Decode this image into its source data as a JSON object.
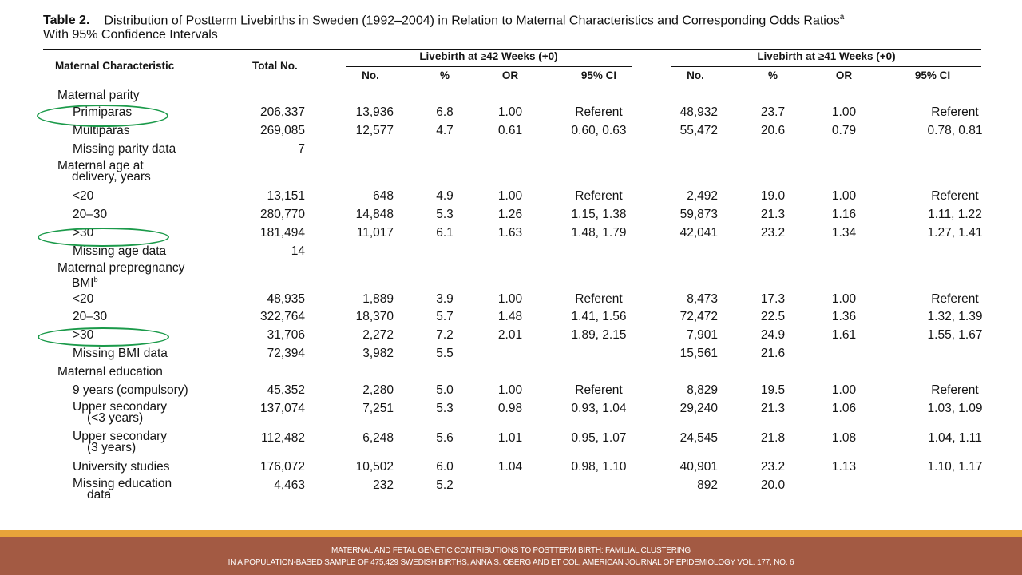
{
  "title": {
    "label": "Table 2.",
    "text": "Distribution of Postterm Livebirths in Sweden (1992–2004) in Relation to Maternal Characteristics and Corresponding Odds Ratios",
    "sup": "a",
    "line2": "With 95% Confidence Intervals"
  },
  "headers": {
    "char": "Maternal Characteristic",
    "total": "Total No.",
    "group1": "Livebirth at ≥42 Weeks (+0)",
    "group2": "Livebirth at ≥41 Weeks (+0)",
    "sub": [
      "No.",
      "%",
      "OR",
      "95% CI",
      "No.",
      "%",
      "OR",
      "95% CI"
    ]
  },
  "rows": [
    {
      "label": "Maternal parity",
      "type": "section",
      "cells": [
        "",
        "",
        "",
        "",
        "",
        "",
        "",
        "",
        ""
      ]
    },
    {
      "label": "Primiparas",
      "type": "item",
      "cells": [
        "206,337",
        "13,936",
        "6.8",
        "1.00",
        "Referent",
        "48,932",
        "23.7",
        "1.00",
        "Referent"
      ]
    },
    {
      "label": "Multiparas",
      "type": "item",
      "cells": [
        "269,085",
        "12,577",
        "4.7",
        "0.61",
        "0.60, 0.63",
        "55,472",
        "20.6",
        "0.79",
        "0.78, 0.81"
      ]
    },
    {
      "label": "Missing parity data",
      "type": "item",
      "cells": [
        "7",
        "",
        "",
        "",
        "",
        "",
        "",
        "",
        ""
      ]
    },
    {
      "label": "Maternal age at",
      "label2": "delivery, years",
      "type": "section2",
      "cells": [
        "",
        "",
        "",
        "",
        "",
        "",
        "",
        "",
        ""
      ]
    },
    {
      "label": "<20",
      "type": "item",
      "cells": [
        "13,151",
        "648",
        "4.9",
        "1.00",
        "Referent",
        "2,492",
        "19.0",
        "1.00",
        "Referent"
      ]
    },
    {
      "label": "20–30",
      "type": "item",
      "cells": [
        "280,770",
        "14,848",
        "5.3",
        "1.26",
        "1.15, 1.38",
        "59,873",
        "21.3",
        "1.16",
        "1.11, 1.22"
      ]
    },
    {
      "label": ">30",
      "type": "item",
      "cells": [
        "181,494",
        "11,017",
        "6.1",
        "1.63",
        "1.48, 1.79",
        "42,041",
        "23.2",
        "1.34",
        "1.27, 1.41"
      ]
    },
    {
      "label": "Missing age data",
      "type": "item",
      "cells": [
        "14",
        "",
        "",
        "",
        "",
        "",
        "",
        "",
        ""
      ]
    },
    {
      "label": "Maternal prepregnancy",
      "label2": "BMI",
      "sup": "b",
      "type": "section2",
      "cells": [
        "",
        "",
        "",
        "",
        "",
        "",
        "",
        "",
        ""
      ]
    },
    {
      "label": "<20",
      "type": "item",
      "cells": [
        "48,935",
        "1,889",
        "3.9",
        "1.00",
        "Referent",
        "8,473",
        "17.3",
        "1.00",
        "Referent"
      ]
    },
    {
      "label": "20–30",
      "type": "item",
      "cells": [
        "322,764",
        "18,370",
        "5.7",
        "1.48",
        "1.41, 1.56",
        "72,472",
        "22.5",
        "1.36",
        "1.32, 1.39"
      ]
    },
    {
      "label": ">30",
      "type": "item",
      "cells": [
        "31,706",
        "2,272",
        "7.2",
        "2.01",
        "1.89, 2.15",
        "7,901",
        "24.9",
        "1.61",
        "1.55, 1.67"
      ]
    },
    {
      "label": "Missing BMI data",
      "type": "item",
      "cells": [
        "72,394",
        "3,982",
        "5.5",
        "",
        "",
        "15,561",
        "21.6",
        "",
        ""
      ]
    },
    {
      "label": "Maternal education",
      "type": "section",
      "cells": [
        "",
        "",
        "",
        "",
        "",
        "",
        "",
        "",
        ""
      ]
    },
    {
      "label": "9 years (compulsory)",
      "type": "item",
      "cells": [
        "45,352",
        "2,280",
        "5.0",
        "1.00",
        "Referent",
        "8,829",
        "19.5",
        "1.00",
        "Referent"
      ]
    },
    {
      "label": "Upper secondary",
      "label2": "(<3 years)",
      "type": "item2",
      "cells": [
        "137,074",
        "7,251",
        "5.3",
        "0.98",
        "0.93, 1.04",
        "29,240",
        "21.3",
        "1.06",
        "1.03, 1.09"
      ]
    },
    {
      "label": "Upper secondary",
      "label2": "(3 years)",
      "type": "item2",
      "cells": [
        "112,482",
        "6,248",
        "5.6",
        "1.01",
        "0.95, 1.07",
        "24,545",
        "21.8",
        "1.08",
        "1.04, 1.11"
      ]
    },
    {
      "label": "University studies",
      "type": "item",
      "cells": [
        "176,072",
        "10,502",
        "6.0",
        "1.04",
        "0.98, 1.10",
        "40,901",
        "23.2",
        "1.13",
        "1.10, 1.17"
      ]
    },
    {
      "label": "Missing education",
      "label2": "data",
      "type": "item2",
      "cells": [
        "4,463",
        "232",
        "5.2",
        "",
        "",
        "892",
        "20.0",
        "",
        ""
      ]
    }
  ],
  "highlight_color": "#1b9a4a",
  "footer": {
    "line1": "MATERNAL AND FETAL GENETIC CONTRIBUTIONS TO POSTTERM BIRTH: FAMILIAL CLUSTERING",
    "line2": "IN A POPULATION-BASED SAMPLE OF 475,429 SWEDISH BIRTHS, ANNA S. OBERG AND ET COL, AMERICAN JOURNAL OF EPIDEMIOLOGY VOL. 177, NO. 6"
  },
  "colors": {
    "footer_orange": "#e7a43a",
    "footer_brown": "#a35a43"
  }
}
